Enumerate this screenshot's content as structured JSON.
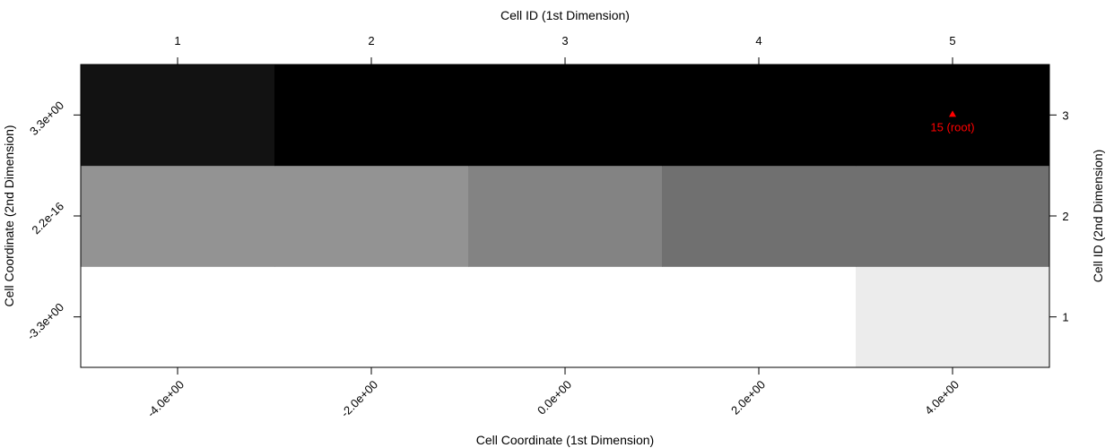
{
  "chart_data": {
    "type": "heatmap",
    "xlabel_bottom": "Cell Coordinate (1st Dimension)",
    "xlabel_top": "Cell ID (1st Dimension)",
    "ylabel_left": "Cell Coordinate (2nd Dimension)",
    "ylabel_right": "Cell ID (2nd Dimension)",
    "x_ids": [
      "1",
      "2",
      "3",
      "4",
      "5"
    ],
    "y_ids": [
      "1",
      "2",
      "3"
    ],
    "x_coords": [
      "-4.0e+00",
      "-2.0e+00",
      "0.0e+00",
      "2.0e+00",
      "4.0e+00"
    ],
    "y_coords": [
      "-3.3e+00",
      "2.2e-16",
      "3.3e+00"
    ],
    "rows": [
      {
        "y_id": "1",
        "colors": [
          "#ffffff",
          "#ffffff",
          "#ffffff",
          "#ffffff",
          "#ececec"
        ]
      },
      {
        "y_id": "2",
        "colors": [
          "#939393",
          "#939393",
          "#838383",
          "#707070",
          "#707070"
        ]
      },
      {
        "y_id": "3",
        "colors": [
          "#121212",
          "#000000",
          "#000000",
          "#000000",
          "#000000"
        ]
      }
    ],
    "annotations": [
      {
        "x_id": "5",
        "y_id": "3",
        "marker": "triangle",
        "text": "15 (root)",
        "color": "#ff0000"
      }
    ]
  }
}
